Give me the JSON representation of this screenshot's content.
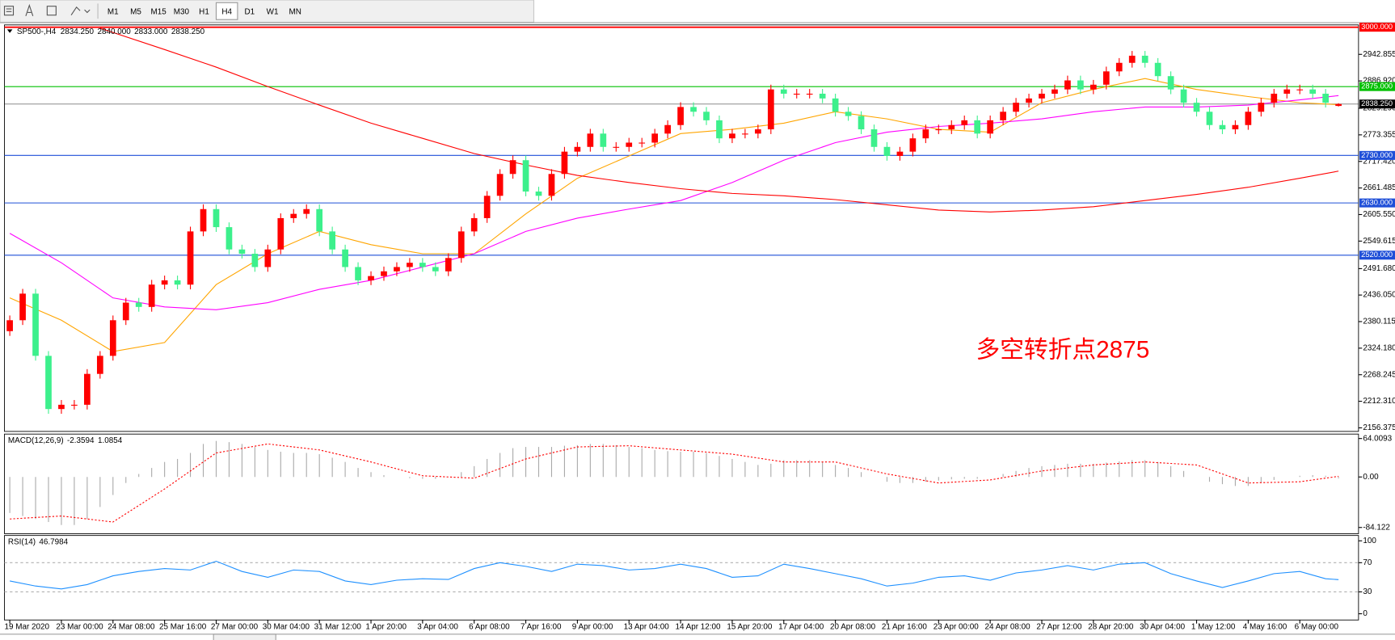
{
  "toolbar": {
    "timeframes": [
      "M1",
      "M5",
      "M15",
      "M30",
      "H1",
      "H4",
      "D1",
      "W1",
      "MN"
    ],
    "active": "H4"
  },
  "chart_data": [
    {
      "type": "candlestick",
      "symbol": "SP500-,H4",
      "ohlc_labels": [
        "2834.250",
        "2840.000",
        "2833.000",
        "2838.250"
      ],
      "annotation": "多空转折点2875",
      "categories": [
        "19 Mar 2020",
        null,
        null,
        null,
        "23 Mar 00:00",
        null,
        null,
        null,
        "24 Mar 08:00",
        null,
        null,
        null,
        "25 Mar 16:00",
        null,
        null,
        null,
        "27 Mar 00:00",
        null,
        null,
        null,
        "30 Mar 04:00",
        null,
        null,
        null,
        "31 Mar 12:00",
        null,
        null,
        null,
        "1 Apr 20:00",
        null,
        null,
        null,
        "3 Apr 04:00",
        null,
        null,
        null,
        "6 Apr 08:00",
        null,
        null,
        null,
        "7 Apr 16:00",
        null,
        null,
        null,
        "9 Apr 00:00",
        null,
        null,
        null,
        "13 Apr 04:00",
        null,
        null,
        null,
        "14 Apr 12:00",
        null,
        null,
        null,
        "15 Apr 20:00",
        null,
        null,
        null,
        "17 Apr 04:00",
        null,
        null,
        null,
        "20 Apr 08:00",
        null,
        null,
        null,
        "21 Apr 16:00",
        null,
        null,
        null,
        "23 Apr 00:00",
        null,
        null,
        null,
        "24 Apr 08:00",
        null,
        null,
        null,
        "27 Apr 12:00",
        null,
        null,
        null,
        "28 Apr 20:00",
        null,
        null,
        null,
        "30 Apr 04:00",
        null,
        null,
        null,
        "1 May 12:00",
        null,
        null,
        null,
        "4 May 16:00",
        null,
        null,
        null,
        "6 May 00:00",
        null,
        null,
        null
      ],
      "candles": {
        "up_color": "#ff0000",
        "down_color": "#3cf08c",
        "open": [
          2360,
          2383,
          2439,
          2308,
          2196,
          2205,
          2205,
          2270,
          2308,
          2383,
          2420,
          2411,
          2458,
          2467,
          2458,
          2570,
          2617,
          2579,
          2532,
          2523,
          2495,
          2532,
          2598,
          2607,
          2617,
          2570,
          2532,
          2495,
          2467,
          2476,
          2486,
          2495,
          2504,
          2495,
          2486,
          2514,
          2570,
          2598,
          2645,
          2691,
          2720,
          2654,
          2645,
          2691,
          2738,
          2748,
          2776,
          2748,
          2748,
          2757,
          2757,
          2776,
          2794,
          2832,
          2822,
          2804,
          2766,
          2776,
          2776,
          2785,
          2869,
          2860,
          2860,
          2860,
          2850,
          2822,
          2813,
          2785,
          2748,
          2729,
          2738,
          2766,
          2785,
          2785,
          2794,
          2804,
          2776,
          2804,
          2822,
          2841,
          2850,
          2860,
          2869,
          2888,
          2869,
          2879,
          2907,
          2925,
          2940,
          2925,
          2897,
          2869,
          2841,
          2822,
          2794,
          2785,
          2794,
          2822,
          2841,
          2860,
          2869,
          2869,
          2860,
          2834.25
        ],
        "high": [
          2393,
          2449,
          2449,
          2318,
          2215,
          2215,
          2280,
          2318,
          2393,
          2430,
          2430,
          2468,
          2477,
          2477,
          2580,
          2627,
          2627,
          2589,
          2542,
          2533,
          2542,
          2608,
          2617,
          2627,
          2627,
          2580,
          2542,
          2505,
          2486,
          2496,
          2505,
          2514,
          2514,
          2505,
          2524,
          2580,
          2608,
          2655,
          2701,
          2730,
          2730,
          2664,
          2701,
          2748,
          2758,
          2786,
          2786,
          2758,
          2767,
          2767,
          2786,
          2804,
          2842,
          2842,
          2832,
          2814,
          2786,
          2786,
          2795,
          2879,
          2879,
          2870,
          2870,
          2870,
          2860,
          2832,
          2823,
          2795,
          2758,
          2748,
          2776,
          2795,
          2795,
          2804,
          2814,
          2814,
          2814,
          2832,
          2851,
          2860,
          2870,
          2879,
          2898,
          2898,
          2889,
          2917,
          2935,
          2950,
          2950,
          2935,
          2907,
          2879,
          2851,
          2832,
          2804,
          2804,
          2832,
          2851,
          2870,
          2879,
          2879,
          2879,
          2870,
          2840
        ],
        "low": [
          2350,
          2373,
          2298,
          2186,
          2186,
          2195,
          2195,
          2260,
          2298,
          2373,
          2401,
          2401,
          2448,
          2448,
          2448,
          2560,
          2569,
          2522,
          2513,
          2485,
          2485,
          2522,
          2588,
          2597,
          2560,
          2522,
          2485,
          2457,
          2457,
          2466,
          2476,
          2485,
          2485,
          2476,
          2476,
          2504,
          2560,
          2588,
          2635,
          2681,
          2644,
          2635,
          2635,
          2681,
          2728,
          2738,
          2738,
          2738,
          2738,
          2747,
          2747,
          2766,
          2784,
          2812,
          2794,
          2756,
          2756,
          2766,
          2766,
          2775,
          2850,
          2850,
          2850,
          2840,
          2812,
          2803,
          2775,
          2738,
          2719,
          2719,
          2728,
          2756,
          2775,
          2775,
          2784,
          2766,
          2766,
          2794,
          2812,
          2831,
          2840,
          2850,
          2859,
          2859,
          2859,
          2869,
          2897,
          2915,
          2915,
          2887,
          2859,
          2831,
          2812,
          2784,
          2775,
          2775,
          2784,
          2812,
          2831,
          2850,
          2859,
          2850,
          2831,
          2833
        ],
        "close": [
          2383,
          2439,
          2308,
          2196,
          2205,
          2205,
          2270,
          2308,
          2383,
          2420,
          2411,
          2458,
          2467,
          2458,
          2570,
          2617,
          2579,
          2532,
          2523,
          2495,
          2532,
          2598,
          2607,
          2617,
          2570,
          2532,
          2495,
          2467,
          2476,
          2486,
          2495,
          2504,
          2495,
          2486,
          2514,
          2570,
          2598,
          2645,
          2691,
          2720,
          2654,
          2645,
          2691,
          2738,
          2748,
          2776,
          2748,
          2748,
          2757,
          2757,
          2776,
          2794,
          2832,
          2822,
          2804,
          2766,
          2776,
          2776,
          2785,
          2869,
          2860,
          2860,
          2860,
          2850,
          2822,
          2813,
          2785,
          2748,
          2729,
          2738,
          2766,
          2785,
          2785,
          2794,
          2804,
          2776,
          2804,
          2822,
          2841,
          2850,
          2860,
          2869,
          2888,
          2869,
          2879,
          2907,
          2925,
          2940,
          2925,
          2897,
          2869,
          2841,
          2822,
          2794,
          2785,
          2794,
          2822,
          2841,
          2860,
          2869,
          2869,
          2860,
          2841,
          2838.25
        ]
      },
      "series": [
        {
          "color": "#ffa500",
          "x": [
            0,
            4,
            8,
            12,
            16,
            20,
            24,
            28,
            32,
            36,
            40,
            44,
            48,
            52,
            56,
            60,
            64,
            68,
            72,
            76,
            80,
            84,
            88,
            92,
            96,
            100,
            103
          ],
          "values": [
            2430,
            2383,
            2317,
            2336,
            2458,
            2523,
            2570,
            2542,
            2523,
            2523,
            2607,
            2682,
            2729,
            2776,
            2785,
            2798,
            2822,
            2807,
            2785,
            2779,
            2841,
            2869,
            2892,
            2869,
            2854,
            2841,
            2837
          ]
        },
        {
          "color": "#ff00ff",
          "x": [
            0,
            4,
            8,
            12,
            16,
            20,
            24,
            28,
            32,
            36,
            40,
            44,
            48,
            52,
            56,
            60,
            64,
            68,
            72,
            76,
            80,
            84,
            88,
            92,
            96,
            100,
            103
          ],
          "values": [
            2566,
            2504,
            2430,
            2411,
            2405,
            2420,
            2448,
            2467,
            2495,
            2523,
            2570,
            2598,
            2617,
            2635,
            2673,
            2720,
            2757,
            2779,
            2791,
            2798,
            2807,
            2822,
            2832,
            2832,
            2836,
            2847,
            2856
          ]
        },
        {
          "color": "#ff0000",
          "x": [
            7,
            12,
            16,
            20,
            24,
            28,
            32,
            36,
            40,
            44,
            48,
            52,
            56,
            60,
            64,
            68,
            72,
            76,
            80,
            84,
            88,
            92,
            96,
            100,
            103
          ],
          "values": [
            2998,
            2953,
            2916,
            2875,
            2836,
            2798,
            2766,
            2734,
            2710,
            2688,
            2673,
            2660,
            2650,
            2645,
            2637,
            2626,
            2615,
            2611,
            2615,
            2622,
            2635,
            2648,
            2663,
            2682,
            2697
          ]
        }
      ],
      "levels": [
        {
          "value": 3000,
          "label": "3000.000",
          "color": "#ff0000"
        },
        {
          "value": 2875,
          "label": "2875.000",
          "color": "#00c000"
        },
        {
          "value": 2838.25,
          "label": "2838.250",
          "color": "#000000"
        },
        {
          "value": 2730,
          "label": "2730.000",
          "color": "#1f4fd8"
        },
        {
          "value": 2630,
          "label": "2630.000",
          "color": "#1f4fd8"
        },
        {
          "value": 2520,
          "label": "2520.000",
          "color": "#1f4fd8"
        }
      ],
      "ylim": [
        2156.375,
        3000
      ],
      "yticks": [
        {
          "value": 2942.855,
          "label": "2942.855"
        },
        {
          "value": 2886.92,
          "label": "2886.920"
        },
        {
          "value": 2829.29,
          "label": "2829.290"
        },
        {
          "value": 2773.355,
          "label": "2773.355"
        },
        {
          "value": 2717.42,
          "label": "2717.420"
        },
        {
          "value": 2661.485,
          "label": "2661.485"
        },
        {
          "value": 2605.55,
          "label": "2605.550"
        },
        {
          "value": 2549.615,
          "label": "2549.615"
        },
        {
          "value": 2491.68,
          "label": "2491.680"
        },
        {
          "value": 2436.05,
          "label": "2436.050"
        },
        {
          "value": 2380.115,
          "label": "2380.115"
        },
        {
          "value": 2324.18,
          "label": "2324.180"
        },
        {
          "value": 2268.245,
          "label": "2268.245"
        },
        {
          "value": 2212.31,
          "label": "2212.310"
        },
        {
          "value": 2156.375,
          "label": "2156.375"
        }
      ]
    },
    {
      "type": "macd",
      "label": "MACD(12,26,9)",
      "histogram": {
        "color": "#a9a9a9",
        "values": [
          -60,
          -65,
          -70,
          -75,
          -80,
          -80,
          -70,
          -50,
          -30,
          -10,
          5,
          15,
          25,
          30,
          40,
          55,
          60,
          58,
          55,
          50,
          45,
          42,
          40,
          40,
          38,
          32,
          25,
          15,
          8,
          3,
          0,
          -2,
          -3,
          -3,
          0,
          8,
          18,
          30,
          40,
          48,
          50,
          50,
          50,
          52,
          53,
          55,
          55,
          53,
          50,
          48,
          45,
          43,
          42,
          42,
          40,
          35,
          30,
          25,
          20,
          22,
          28,
          28,
          28,
          25,
          20,
          15,
          8,
          0,
          -8,
          -10,
          -10,
          -8,
          -6,
          -4,
          -3,
          -3,
          0,
          5,
          10,
          15,
          18,
          20,
          22,
          22,
          22,
          24,
          26,
          28,
          28,
          25,
          18,
          10,
          0,
          -8,
          -12,
          -15,
          -15,
          -10,
          -5,
          0,
          2,
          3,
          2,
          -2.3594
        ]
      },
      "series": [
        {
          "color": "#ff0000",
          "style": "dotted",
          "x": [
            0,
            4,
            8,
            12,
            16,
            20,
            24,
            28,
            32,
            36,
            40,
            44,
            48,
            52,
            56,
            60,
            64,
            68,
            72,
            76,
            80,
            84,
            88,
            92,
            96,
            100,
            103
          ],
          "values": [
            -70,
            -65,
            -75,
            -20,
            40,
            55,
            45,
            25,
            2,
            -2,
            30,
            50,
            52,
            45,
            38,
            25,
            25,
            5,
            -10,
            -5,
            10,
            20,
            25,
            20,
            -10,
            -8,
            1.0854
          ]
        }
      ],
      "ylim": [
        -84.122,
        64.0093
      ],
      "yticks": [
        64.0093,
        {
          "value": 0,
          "label": "0.00"
        },
        -84.122
      ]
    },
    {
      "type": "rsi",
      "label": "RSI(14)",
      "grid": true,
      "series": [
        {
          "color": "#1e90ff",
          "x": [
            0,
            2,
            4,
            6,
            8,
            10,
            12,
            14,
            16,
            18,
            20,
            22,
            24,
            26,
            28,
            30,
            32,
            34,
            36,
            38,
            40,
            42,
            44,
            46,
            48,
            50,
            52,
            54,
            56,
            58,
            60,
            62,
            64,
            66,
            68,
            70,
            72,
            74,
            76,
            78,
            80,
            82,
            84,
            86,
            88,
            90,
            92,
            94,
            96,
            98,
            100,
            102,
            103
          ],
          "values": [
            45,
            38,
            34,
            40,
            52,
            58,
            62,
            60,
            72,
            58,
            50,
            60,
            58,
            45,
            40,
            46,
            48,
            47,
            62,
            70,
            65,
            58,
            68,
            66,
            60,
            62,
            68,
            62,
            50,
            52,
            68,
            62,
            55,
            48,
            38,
            42,
            50,
            52,
            46,
            56,
            60,
            66,
            60,
            68,
            70,
            55,
            45,
            36,
            45,
            55,
            58,
            48,
            46.7984
          ]
        }
      ],
      "ylim": [
        0,
        100
      ],
      "yticks": [
        100,
        70,
        30,
        0
      ]
    }
  ]
}
